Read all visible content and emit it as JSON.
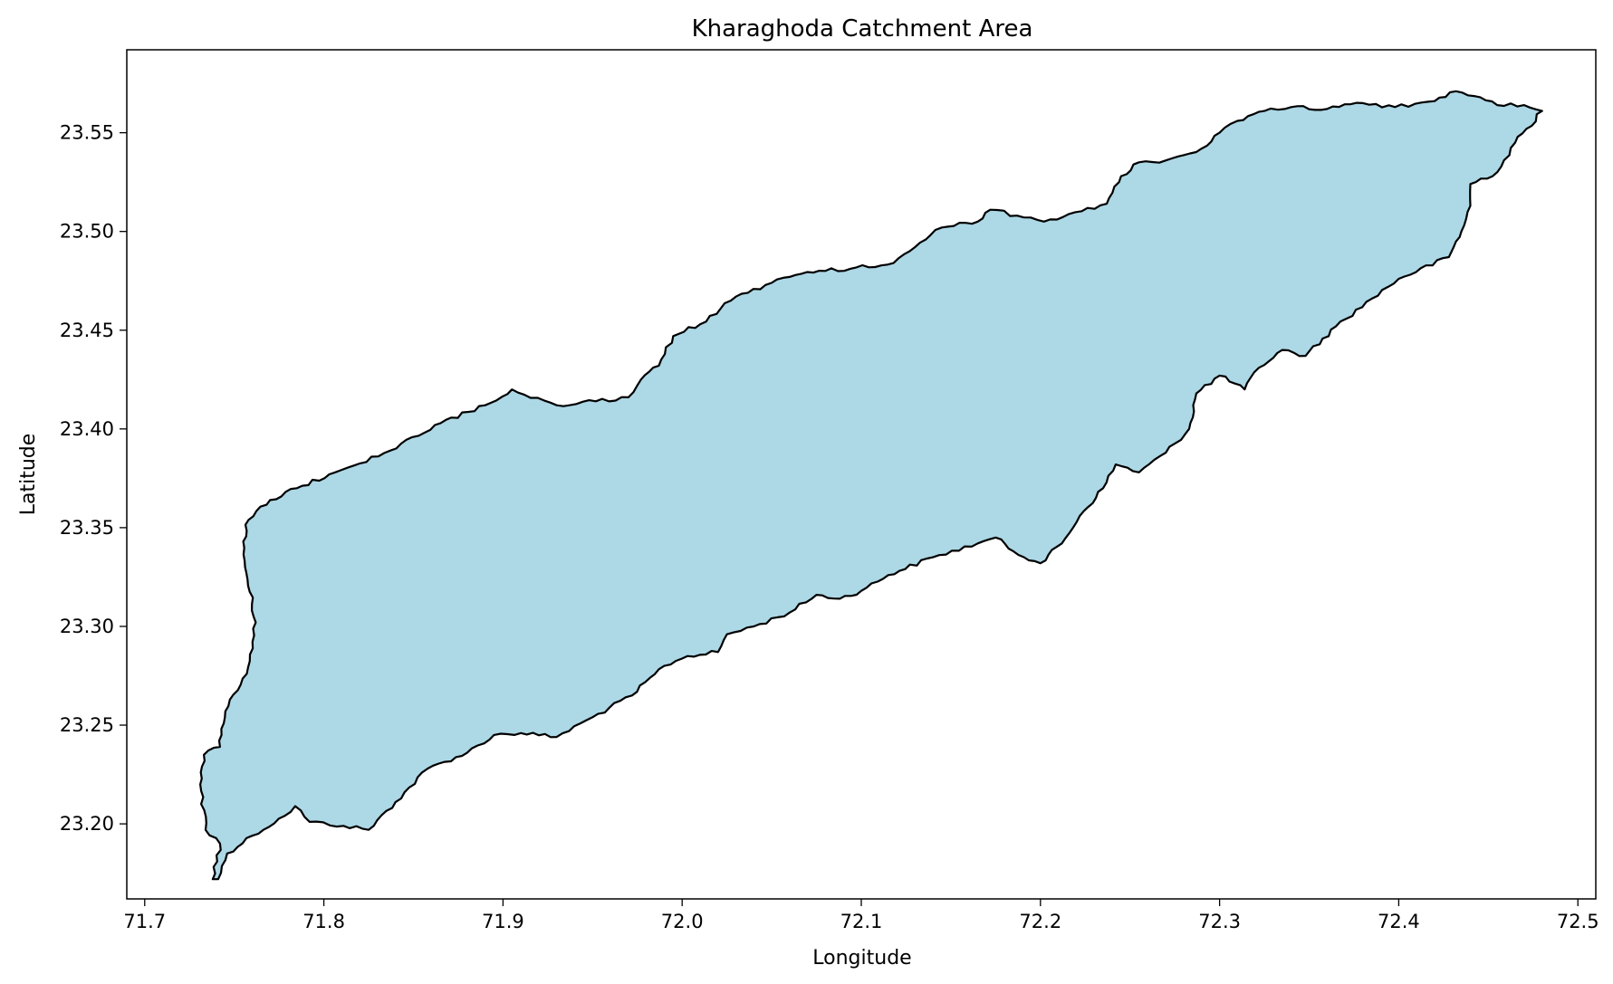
{
  "title": "Kharaghoda Catchment Area",
  "xlabel": "Longitude",
  "ylabel": "Latitude",
  "x_ticks": [
    "71.7",
    "71.8",
    "71.9",
    "72.0",
    "72.1",
    "72.2",
    "72.3",
    "72.4",
    "72.5"
  ],
  "y_ticks": [
    "23.20",
    "23.25",
    "23.30",
    "23.35",
    "23.40",
    "23.45",
    "23.50",
    "23.55"
  ],
  "colors": {
    "fill": "#add8e6",
    "edge": "#000000"
  },
  "chart_data": {
    "type": "area",
    "title": "Kharaghoda Catchment Area",
    "xlabel": "Longitude",
    "ylabel": "Latitude",
    "xlim": [
      71.69,
      72.51
    ],
    "ylim": [
      23.162,
      23.592
    ],
    "grid": false,
    "polygon": [
      [
        71.741,
        23.172
      ],
      [
        71.746,
        23.185
      ],
      [
        71.76,
        23.194
      ],
      [
        71.778,
        23.204
      ],
      [
        71.784,
        23.209
      ],
      [
        71.792,
        23.201
      ],
      [
        71.811,
        23.199
      ],
      [
        71.825,
        23.197
      ],
      [
        71.84,
        23.211
      ],
      [
        71.858,
        23.228
      ],
      [
        71.88,
        23.236
      ],
      [
        71.895,
        23.245
      ],
      [
        71.91,
        23.246
      ],
      [
        71.93,
        23.244
      ],
      [
        71.95,
        23.254
      ],
      [
        71.972,
        23.265
      ],
      [
        71.99,
        23.28
      ],
      [
        72.003,
        23.285
      ],
      [
        72.02,
        23.287
      ],
      [
        72.025,
        23.296
      ],
      [
        72.04,
        23.3
      ],
      [
        72.06,
        23.307
      ],
      [
        72.075,
        23.316
      ],
      [
        72.088,
        23.314
      ],
      [
        72.1,
        23.318
      ],
      [
        72.115,
        23.326
      ],
      [
        72.14,
        23.335
      ],
      [
        72.165,
        23.342
      ],
      [
        72.175,
        23.345
      ],
      [
        72.185,
        23.338
      ],
      [
        72.2,
        23.332
      ],
      [
        72.212,
        23.342
      ],
      [
        72.222,
        23.356
      ],
      [
        72.235,
        23.37
      ],
      [
        72.242,
        23.382
      ],
      [
        72.255,
        23.378
      ],
      [
        72.27,
        23.388
      ],
      [
        72.283,
        23.4
      ],
      [
        72.287,
        23.418
      ],
      [
        72.3,
        23.427
      ],
      [
        72.314,
        23.42
      ],
      [
        72.322,
        23.431
      ],
      [
        72.335,
        23.44
      ],
      [
        72.348,
        23.437
      ],
      [
        72.365,
        23.452
      ],
      [
        72.385,
        23.466
      ],
      [
        72.4,
        23.476
      ],
      [
        72.428,
        23.487
      ],
      [
        72.435,
        23.5
      ],
      [
        72.44,
        23.513
      ],
      [
        72.44,
        23.524
      ],
      [
        72.455,
        23.53
      ],
      [
        72.465,
        23.545
      ],
      [
        72.48,
        23.561
      ],
      [
        72.47,
        23.564
      ],
      [
        72.455,
        23.564
      ],
      [
        72.432,
        23.571
      ],
      [
        72.42,
        23.566
      ],
      [
        72.398,
        23.563
      ],
      [
        72.38,
        23.565
      ],
      [
        72.36,
        23.562
      ],
      [
        72.34,
        23.563
      ],
      [
        72.325,
        23.561
      ],
      [
        72.31,
        23.556
      ],
      [
        72.3,
        23.55
      ],
      [
        72.29,
        23.542
      ],
      [
        72.27,
        23.536
      ],
      [
        72.255,
        23.535
      ],
      [
        72.245,
        23.528
      ],
      [
        72.237,
        23.514
      ],
      [
        72.202,
        23.505
      ],
      [
        72.187,
        23.508
      ],
      [
        72.172,
        23.511
      ],
      [
        72.165,
        23.505
      ],
      [
        72.145,
        23.502
      ],
      [
        72.118,
        23.484
      ],
      [
        72.08,
        23.48
      ],
      [
        72.06,
        23.477
      ],
      [
        72.03,
        23.467
      ],
      [
        72.01,
        23.453
      ],
      [
        71.995,
        23.447
      ],
      [
        71.987,
        23.432
      ],
      [
        71.977,
        23.425
      ],
      [
        71.97,
        23.416
      ],
      [
        71.93,
        23.412
      ],
      [
        71.905,
        23.42
      ],
      [
        71.89,
        23.412
      ],
      [
        71.862,
        23.402
      ],
      [
        71.837,
        23.389
      ],
      [
        71.803,
        23.377
      ],
      [
        71.785,
        23.37
      ],
      [
        71.77,
        23.364
      ],
      [
        71.758,
        23.354
      ],
      [
        71.755,
        23.343
      ],
      [
        71.756,
        23.33
      ],
      [
        71.762,
        23.302
      ],
      [
        71.757,
        23.276
      ],
      [
        71.745,
        23.257
      ],
      [
        71.742,
        23.239
      ],
      [
        71.733,
        23.235
      ],
      [
        71.731,
        23.22
      ],
      [
        71.734,
        23.197
      ],
      [
        71.742,
        23.19
      ],
      [
        71.738,
        23.172
      ]
    ]
  }
}
